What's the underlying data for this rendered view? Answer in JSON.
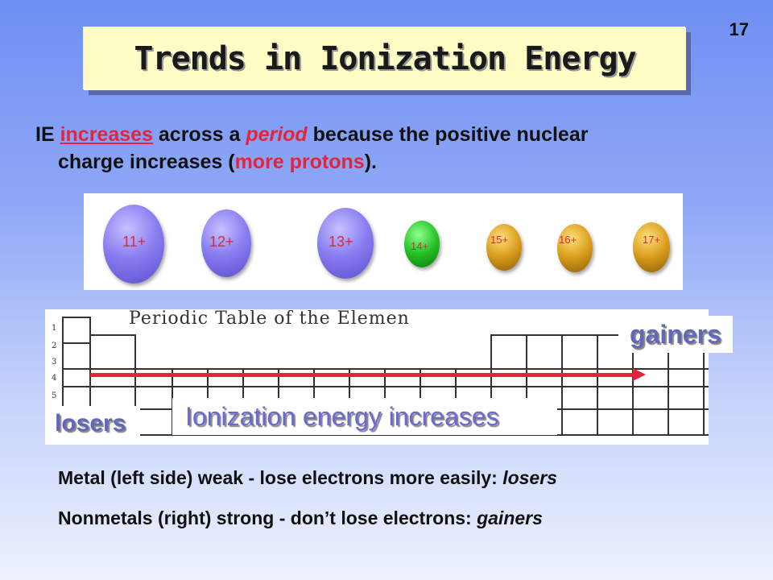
{
  "slide": {
    "number": "17",
    "title": "Trends in Ionization Energy"
  },
  "statement": {
    "part1": "IE ",
    "increases": "increases",
    "part2": " across a ",
    "period": "period",
    "part3": " because the positive nuclear",
    "part4": "charge increases (",
    "more_protons": "more protons",
    "part5": ")."
  },
  "atoms": [
    {
      "charge": "11+",
      "color": "purple"
    },
    {
      "charge": "12+",
      "color": "purple"
    },
    {
      "charge": "13+",
      "color": "purple"
    },
    {
      "charge": "14+",
      "color": "green"
    },
    {
      "charge": "15+",
      "color": "gold"
    },
    {
      "charge": "16+",
      "color": "gold"
    },
    {
      "charge": "17+",
      "color": "gold"
    }
  ],
  "periodic_table": {
    "header": "Periodic Table of the Elemen",
    "row_numbers": [
      "1",
      "2",
      "3",
      "4",
      "5"
    ]
  },
  "labels": {
    "gainers": "gainers",
    "losers": "losers",
    "ie_increases": "Ionization energy increases"
  },
  "notes": {
    "line1_a": "Metal (left side)  weak - lose electrons more easily: ",
    "line1_b": "losers",
    "line2_a": "Nonmetals (right) strong - don’t lose electrons: ",
    "line2_b": "gainers"
  },
  "colors": {
    "accent_red": "#e3253c",
    "title_bg": "#fdfcc4",
    "label_blue": "#6467b8"
  }
}
